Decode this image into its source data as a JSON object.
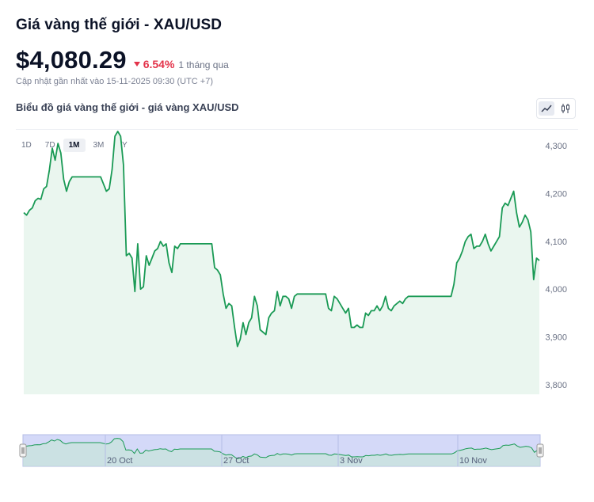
{
  "header": {
    "title": "Giá vàng thế giới - XAU/USD",
    "price": "$4,080.29",
    "change_pct": "6.54%",
    "change_period": "1 tháng qua",
    "updated": "Cập nhật gần nhất vào 15-11-2025 09:30 (UTC +7)"
  },
  "chart_section": {
    "title": "Biểu đồ giá vàng thế giới - giá vàng XAU/USD",
    "view_toggle": {
      "line_icon": "line-chart-icon",
      "candle_icon": "candlestick-icon",
      "active": "line"
    },
    "periods": [
      "1D",
      "7D",
      "1M",
      "3M",
      "1Y"
    ],
    "active_period": "1M"
  },
  "colors": {
    "line": "#1a9a55",
    "area": "#eaf6ef",
    "negative": "#e3334a",
    "navigator": "#d4d9f8"
  },
  "chart_data": {
    "type": "area",
    "title": "",
    "xlabel": "",
    "ylabel": "",
    "ylim": [
      3780,
      4340
    ],
    "yticks": [
      3800,
      3900,
      4000,
      4100,
      4200,
      4300
    ],
    "ytick_labels": [
      "3,800",
      "3,900",
      "4,000",
      "4,100",
      "4,200",
      "4,300"
    ],
    "y_axis_position": "right",
    "grid": false,
    "navigator_labels": [
      "20 Oct",
      "27 Oct",
      "3 Nov",
      "10 Nov"
    ],
    "series": [
      {
        "values": [
          4160,
          4155,
          4165,
          4170,
          4185,
          4190,
          4188,
          4210,
          4215,
          4250,
          4295,
          4270,
          4305,
          4285,
          4230,
          4205,
          4225,
          4235,
          4235,
          4235,
          4235,
          4235,
          4235,
          4235,
          4235,
          4235,
          4235,
          4235,
          4220,
          4205,
          4210,
          4250,
          4320,
          4330,
          4320,
          4260,
          4070,
          4075,
          4065,
          3995,
          4095,
          4000,
          4005,
          4070,
          4050,
          4065,
          4080,
          4085,
          4100,
          4090,
          4095,
          4055,
          4035,
          4090,
          4085,
          4095,
          4095,
          4095,
          4095,
          4095,
          4095,
          4095,
          4095,
          4095,
          4095,
          4095,
          4095,
          4045,
          4040,
          4030,
          3990,
          3960,
          3970,
          3965,
          3920,
          3880,
          3895,
          3930,
          3905,
          3930,
          3940,
          3985,
          3965,
          3915,
          3910,
          3905,
          3940,
          3950,
          3955,
          3995,
          3965,
          3985,
          3985,
          3980,
          3960,
          3985,
          3990,
          3990,
          3990,
          3990,
          3990,
          3990,
          3990,
          3990,
          3990,
          3990,
          3990,
          3960,
          3955,
          3985,
          3980,
          3970,
          3960,
          3950,
          3960,
          3920,
          3920,
          3925,
          3920,
          3920,
          3950,
          3945,
          3955,
          3955,
          3965,
          3955,
          3965,
          3985,
          3960,
          3955,
          3965,
          3970,
          3975,
          3970,
          3980,
          3985,
          3985,
          3985,
          3985,
          3985,
          3985,
          3985,
          3985,
          3985,
          3985,
          3985,
          3985,
          3985,
          3985,
          3985,
          3985,
          4010,
          4055,
          4065,
          4080,
          4100,
          4110,
          4115,
          4085,
          4090,
          4090,
          4100,
          4115,
          4095,
          4080,
          4090,
          4100,
          4110,
          4170,
          4180,
          4175,
          4190,
          4205,
          4160,
          4130,
          4140,
          4155,
          4145,
          4120,
          4020,
          4065,
          4060
        ]
      }
    ]
  }
}
